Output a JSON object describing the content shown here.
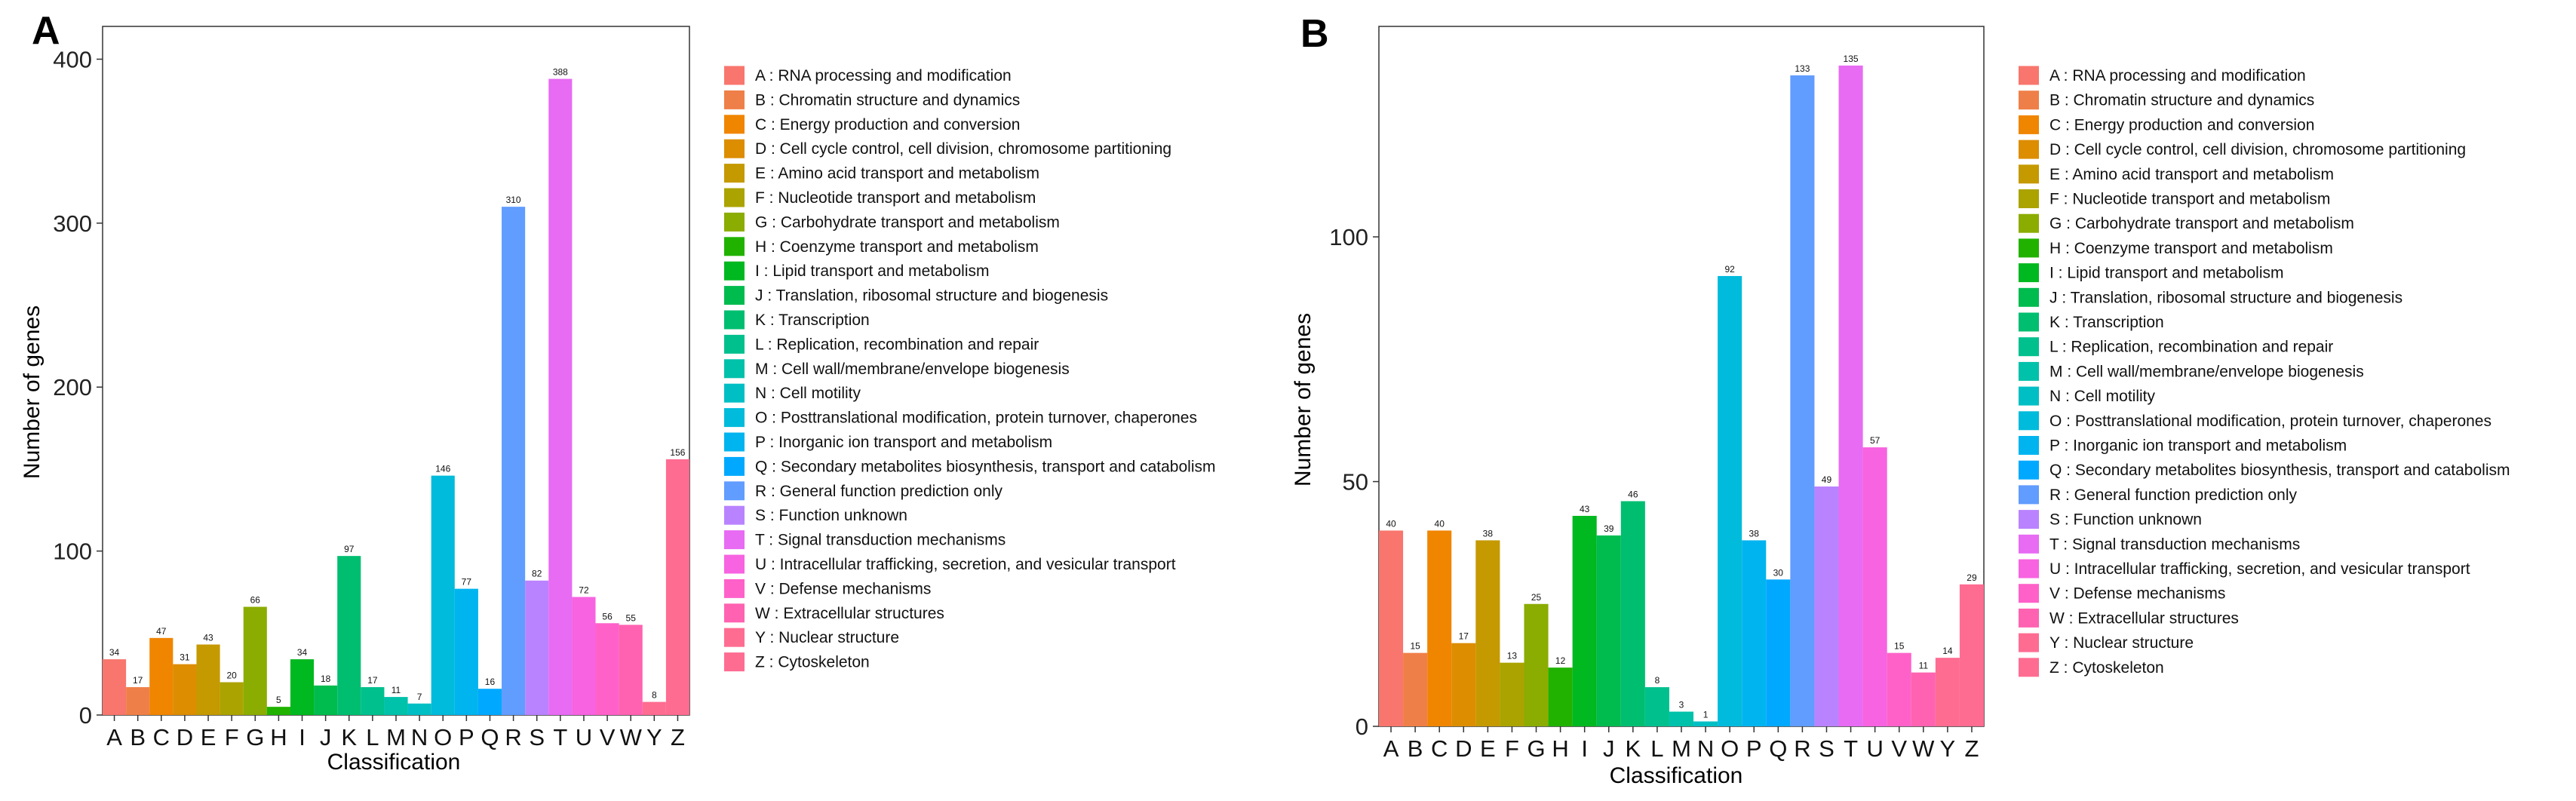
{
  "categories": [
    "A",
    "B",
    "C",
    "D",
    "E",
    "F",
    "G",
    "H",
    "I",
    "J",
    "K",
    "L",
    "M",
    "N",
    "O",
    "P",
    "Q",
    "R",
    "S",
    "T",
    "U",
    "V",
    "W",
    "Y",
    "Z"
  ],
  "colors": [
    "#F8766D",
    "#EF7F48",
    "#F08500",
    "#DC8D00",
    "#C59900",
    "#ABA300",
    "#8BAC00",
    "#21B200",
    "#00B81F",
    "#00BB4E",
    "#00BE70",
    "#00C08E",
    "#00C1AA",
    "#00BFC4",
    "#00BBDB",
    "#00B4EF",
    "#00A9FF",
    "#619CFF",
    "#B983FF",
    "#E76BF3",
    "#F763E0",
    "#FF61C9",
    "#FF62B0",
    "#FF6C91",
    "#FF6C91"
  ],
  "legend_labels": [
    "A : RNA processing and modification",
    "B : Chromatin structure and dynamics",
    "C : Energy production and conversion",
    "D : Cell cycle control, cell division, chromosome partitioning",
    "E : Amino acid transport and metabolism",
    "F : Nucleotide transport and metabolism",
    "G : Carbohydrate transport and metabolism",
    "H : Coenzyme transport and metabolism",
    "I : Lipid transport and metabolism",
    "J : Translation, ribosomal structure and biogenesis",
    "K : Transcription",
    "L : Replication, recombination and repair",
    "M : Cell wall/membrane/envelope biogenesis",
    "N : Cell motility",
    "O : Posttranslational modification, protein turnover, chaperones",
    "P : Inorganic ion transport and metabolism",
    "Q : Secondary metabolites biosynthesis, transport and catabolism",
    "R : General function prediction only",
    "S : Function unknown",
    "T : Signal transduction mechanisms",
    "U : Intracellular trafficking, secretion, and vesicular transport",
    "V : Defense mechanisms",
    "W : Extracellular structures",
    "Y : Nuclear structure",
    "Z : Cytoskeleton"
  ],
  "chart_data": [
    {
      "panel": "A",
      "type": "bar",
      "xlabel": "Classification",
      "ylabel": "Number of genes",
      "ylim": [
        0,
        420
      ],
      "yticks": [
        0,
        100,
        200,
        300,
        400
      ],
      "categories": [
        "A",
        "B",
        "C",
        "D",
        "E",
        "F",
        "G",
        "H",
        "I",
        "J",
        "K",
        "L",
        "M",
        "N",
        "O",
        "P",
        "Q",
        "R",
        "S",
        "T",
        "U",
        "V",
        "W",
        "Y",
        "Z"
      ],
      "values": [
        34,
        17,
        47,
        31,
        43,
        20,
        66,
        5,
        34,
        18,
        97,
        17,
        11,
        7,
        146,
        77,
        16,
        310,
        82,
        388,
        72,
        56,
        55,
        8,
        156
      ],
      "legend": "right"
    },
    {
      "panel": "B",
      "type": "bar",
      "xlabel": "Classification",
      "ylabel": "Number of genes",
      "ylim": [
        0,
        143
      ],
      "yticks": [
        0,
        50,
        100
      ],
      "categories": [
        "A",
        "B",
        "C",
        "D",
        "E",
        "F",
        "G",
        "H",
        "I",
        "J",
        "K",
        "L",
        "M",
        "N",
        "O",
        "P",
        "Q",
        "R",
        "S",
        "T",
        "U",
        "V",
        "W",
        "Y",
        "Z"
      ],
      "values": [
        40,
        15,
        40,
        17,
        38,
        13,
        25,
        12,
        43,
        39,
        46,
        8,
        3,
        1,
        92,
        38,
        30,
        133,
        49,
        135,
        57,
        15,
        11,
        14,
        29
      ],
      "legend": "right"
    }
  ]
}
